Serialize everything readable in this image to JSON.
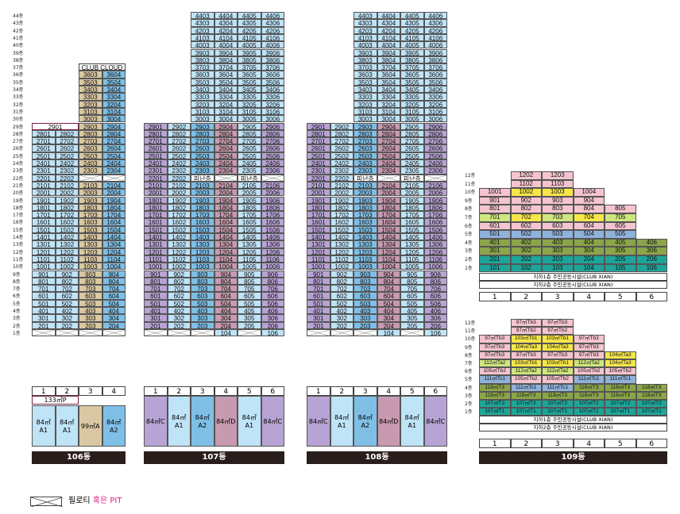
{
  "floor_suffix": "층",
  "colors": {
    "lavender": "#b7a3d4",
    "skyblue": "#7fbfe6",
    "lightblue": "#bfe3f7",
    "tan": "#d9c8a3",
    "mauve": "#c79ab0",
    "pink": "#f4c4cf",
    "yellow": "#f7e64a",
    "lime": "#cfe57d",
    "olive": "#8ca54a",
    "teal": "#1ea59a",
    "steel": "#8fb2da"
  },
  "buildings": [
    {
      "name": "106동",
      "col_numbers": [
        "1",
        "2",
        "3",
        "4"
      ],
      "floor_label_offset": 18,
      "special": {
        "clubhouse_label": "CLUB CLOUD",
        "penthouse_label": "2901",
        "penthouse_unit": "133㎡P"
      },
      "units": [
        "84㎡A1",
        "84㎡A1",
        "99㎡A",
        "84㎡A2"
      ]
    },
    {
      "name": "107동",
      "col_numbers": [
        "1",
        "2",
        "3",
        "4",
        "5",
        "6"
      ],
      "special": {
        "refuge_label": "피난층"
      },
      "units": [
        "84㎡C",
        "84㎡A1",
        "84㎡A2",
        "84㎡D",
        "84㎡A1",
        "84㎡C"
      ]
    },
    {
      "name": "108동",
      "col_numbers": [
        "1",
        "2",
        "3",
        "4",
        "5",
        "6"
      ],
      "special": {
        "refuge_label": "피난층"
      },
      "units": [
        "84㎡C",
        "84㎡A1",
        "84㎡A2",
        "84㎡D",
        "84㎡A1",
        "84㎡C"
      ]
    },
    {
      "name": "109동",
      "col_numbers": [
        "1",
        "2",
        "3",
        "4",
        "5",
        "6"
      ],
      "notes": [
        "지하1층 주민공동시설(CLUB XIAN)",
        "지하2층 주민공동시설(CLUB XIAN)"
      ],
      "upper_rows": [
        {
          "floor": "12층",
          "cells": [
            "",
            "1202",
            "1203",
            "",
            "",
            ""
          ]
        },
        {
          "floor": "11층",
          "cells": [
            "",
            "1102",
            "1103",
            "",
            "",
            ""
          ]
        },
        {
          "floor": "10층",
          "cells": [
            "1001",
            "1002",
            "1003",
            "1004",
            "",
            ""
          ]
        },
        {
          "floor": "9층",
          "cells": [
            "901",
            "902",
            "903",
            "904",
            "",
            ""
          ]
        },
        {
          "floor": "8층",
          "cells": [
            "801",
            "802",
            "803",
            "804",
            "805",
            ""
          ]
        },
        {
          "floor": "7층",
          "cells": [
            "701",
            "702",
            "703",
            "704",
            "705",
            ""
          ]
        },
        {
          "floor": "6층",
          "cells": [
            "601",
            "602",
            "603",
            "604",
            "605",
            ""
          ]
        },
        {
          "floor": "5층",
          "cells": [
            "501",
            "502",
            "503",
            "504",
            "505",
            ""
          ]
        },
        {
          "floor": "4층",
          "cells": [
            "401",
            "402",
            "403",
            "404",
            "405",
            "406"
          ]
        },
        {
          "floor": "3층",
          "cells": [
            "301",
            "302",
            "303",
            "304",
            "305",
            "306"
          ]
        },
        {
          "floor": "2층",
          "cells": [
            "201",
            "202",
            "203",
            "204",
            "205",
            "206"
          ]
        },
        {
          "floor": "1층",
          "cells": [
            "101",
            "102",
            "103",
            "104",
            "105",
            "106"
          ]
        }
      ],
      "lower_rows": [
        {
          "floor": "12층",
          "cells": [
            "",
            "97㎡Tb3",
            "97㎡Tb3",
            "",
            "",
            ""
          ]
        },
        {
          "floor": "11층",
          "cells": [
            "",
            "97㎡Tb2",
            "97㎡Tb2",
            "",
            "",
            ""
          ]
        },
        {
          "floor": "10층",
          "cells": [
            "97㎡Tb3",
            "103㎡Tb1",
            "103㎡Tb1",
            "97㎡Tb3",
            "",
            ""
          ]
        },
        {
          "floor": "9층",
          "cells": [
            "97㎡Tb3",
            "104㎡Ta3",
            "104㎡Ta3",
            "97㎡Tb3",
            "",
            ""
          ]
        },
        {
          "floor": "8층",
          "cells": [
            "97㎡Tb3",
            "97㎡Tb3",
            "97㎡Tb3",
            "97㎡Tb3",
            "104㎡Ta3",
            ""
          ]
        },
        {
          "floor": "7층",
          "cells": [
            "112㎡Ta2",
            "103㎡Tb1",
            "103㎡Tb1",
            "112㎡Ta2",
            "104㎡Ta3",
            ""
          ]
        },
        {
          "floor": "6층",
          "cells": [
            "105㎡Tb2",
            "112㎡Ta2",
            "112㎡Ta2",
            "105㎡Tb2",
            "105㎡Tb2",
            ""
          ]
        },
        {
          "floor": "5층",
          "cells": [
            "111㎡Tc1",
            "105㎡Tb2",
            "105㎡Tb2",
            "111㎡Tc1",
            "111㎡Tc1",
            ""
          ]
        },
        {
          "floor": "4층",
          "cells": [
            "118㎡T3",
            "111㎡Tc1",
            "111㎡Tc1",
            "118㎡T3",
            "118㎡T3",
            "118㎡T3"
          ]
        },
        {
          "floor": "3층",
          "cells": [
            "118㎡T3",
            "118㎡T3",
            "118㎡T3",
            "118㎡T3",
            "118㎡T3",
            "118㎡T3"
          ]
        },
        {
          "floor": "2층",
          "cells": [
            "107㎡T2",
            "107㎡T2",
            "107㎡T2",
            "107㎡T2",
            "107㎡T2",
            "107㎡T2"
          ]
        },
        {
          "floor": "1층",
          "cells": [
            "107㎡T1",
            "107㎡T1",
            "107㎡T1",
            "107㎡T1",
            "107㎡T1",
            "107㎡T1"
          ]
        }
      ]
    }
  ],
  "legend": {
    "text_black": "필로티 ",
    "text_pink": "혹은 PIT"
  }
}
